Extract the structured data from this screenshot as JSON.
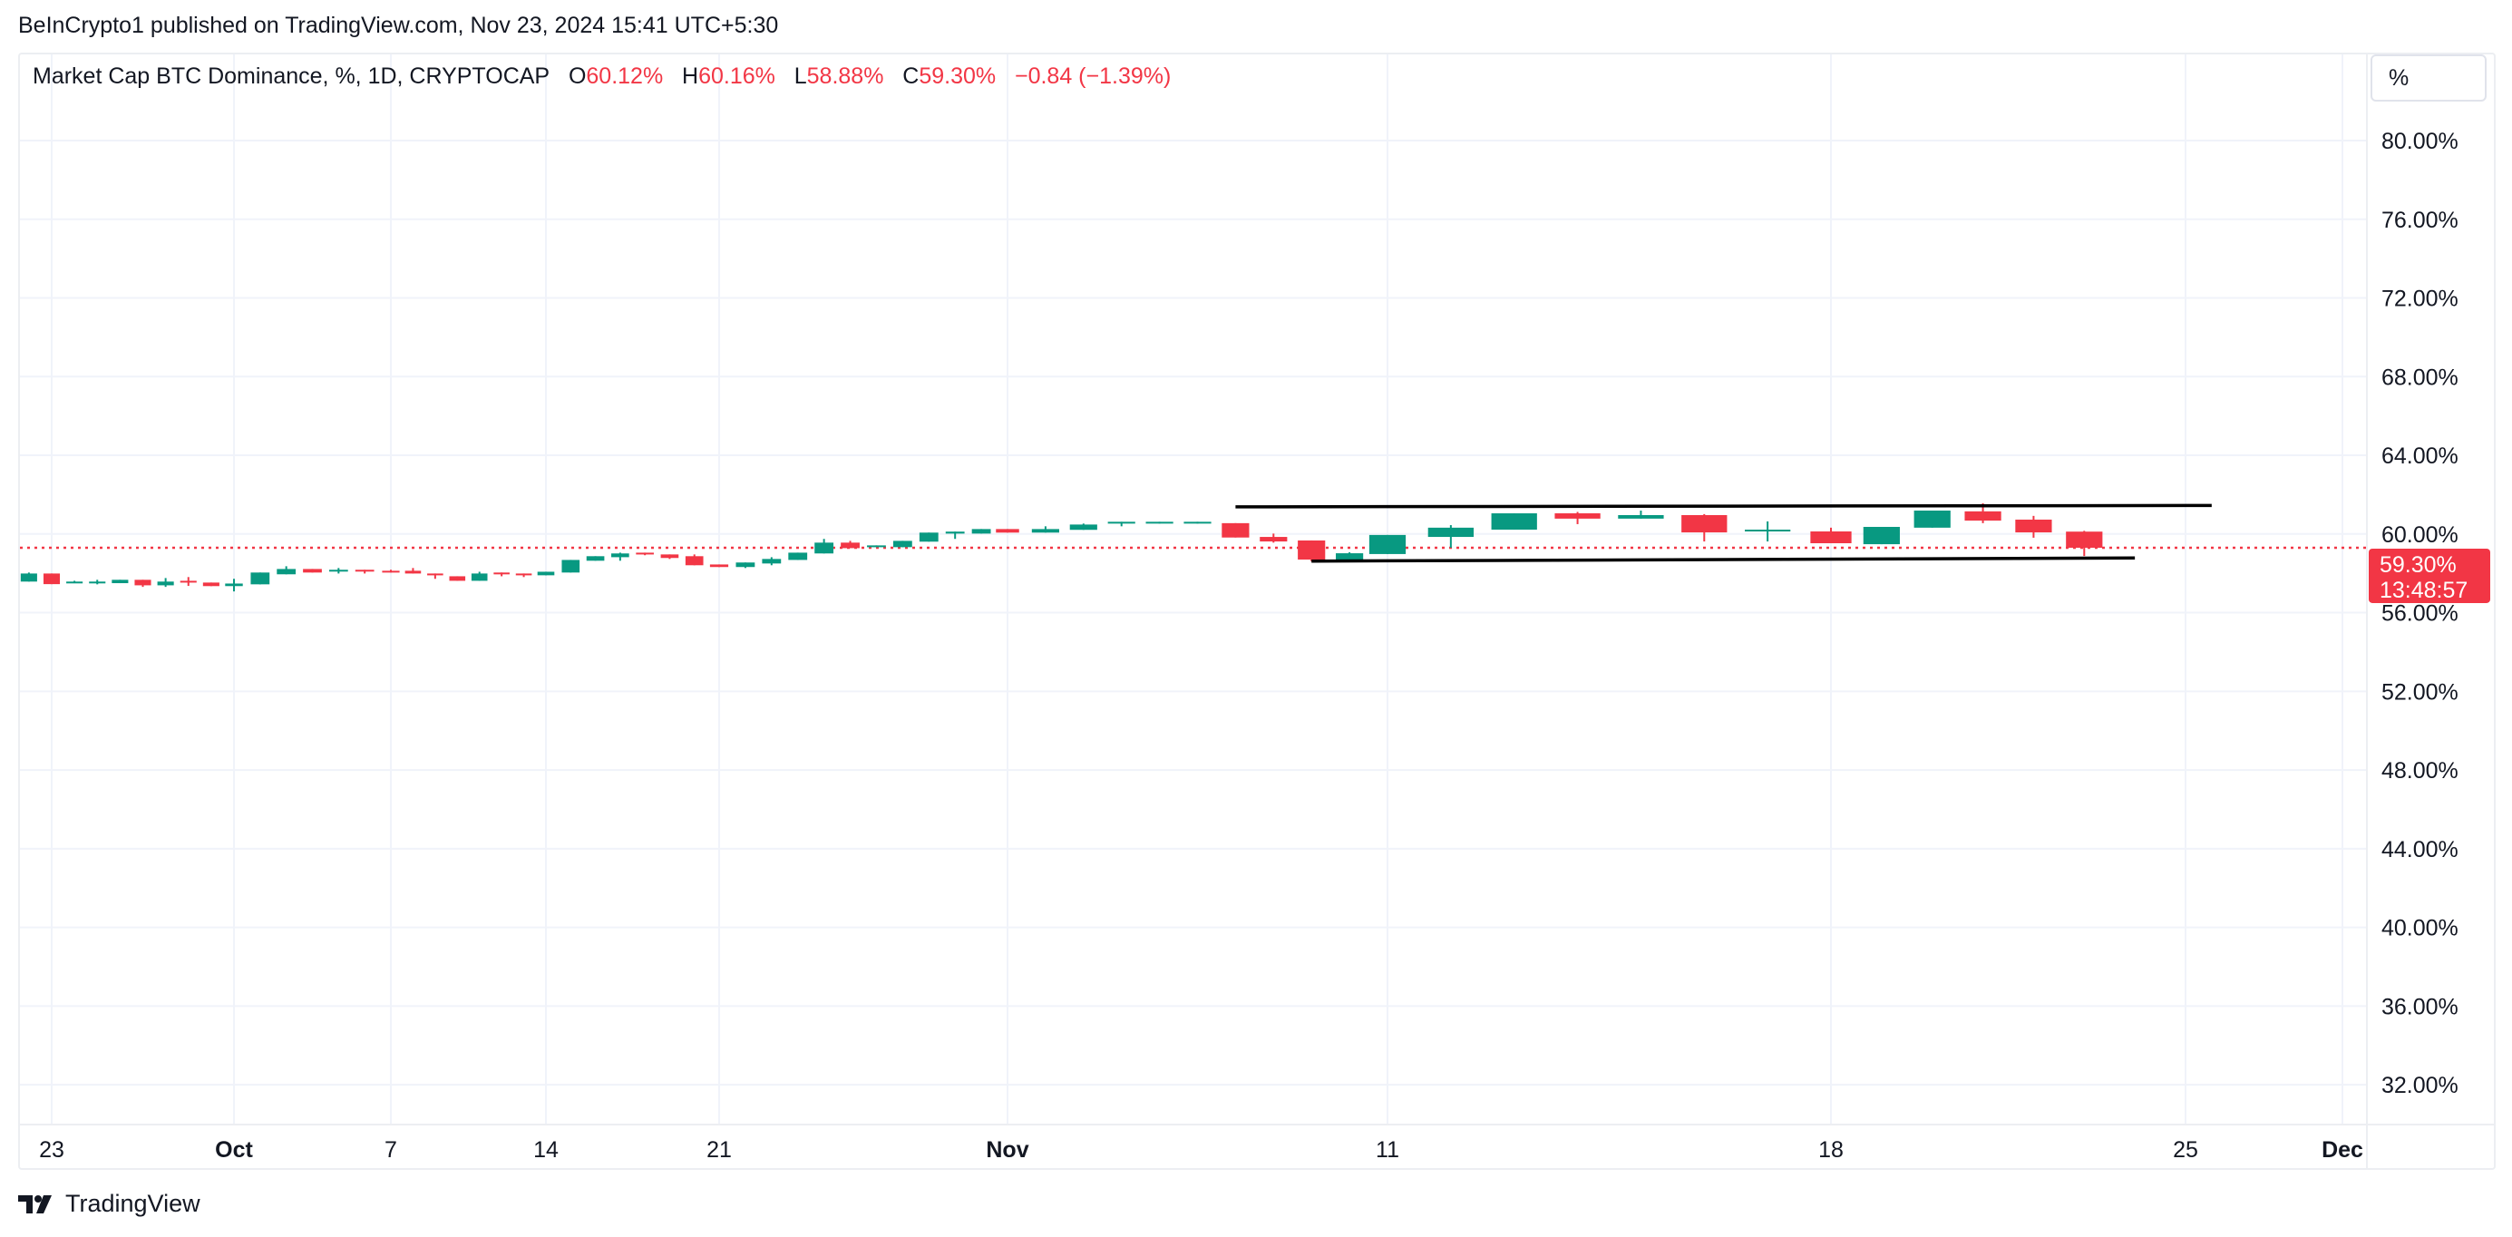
{
  "header": {
    "published": "BeInCrypto1 published on TradingView.com, Nov 23, 2024 15:41 UTC+5:30"
  },
  "legend": {
    "symbol": "Market Cap BTC Dominance, %, 1D, CRYPTOCAP",
    "o_label": "O",
    "o_value": "60.12%",
    "h_label": "H",
    "h_value": "60.16%",
    "l_label": "L",
    "l_value": "58.88%",
    "c_label": "C",
    "c_value": "59.30%",
    "change": "−0.84 (−1.39%)"
  },
  "scale_button": {
    "label": "%"
  },
  "price_label": {
    "value": "59.30%",
    "countdown": "13:48:57"
  },
  "footer": {
    "brand": "TradingView"
  },
  "colors": {
    "up": "#089981",
    "down": "#F23645",
    "grid": "#f0f3fa",
    "text": "#131722",
    "trendline": "#000000"
  },
  "chart_data": {
    "type": "candlestick",
    "title": "Market Cap BTC Dominance, %, 1D, CRYPTOCAP",
    "ylim": [
      30,
      82
    ],
    "grid": true,
    "y_ticks": [
      "80.00%",
      "76.00%",
      "72.00%",
      "68.00%",
      "64.00%",
      "60.00%",
      "56.00%",
      "52.00%",
      "48.00%",
      "44.00%",
      "40.00%",
      "36.00%",
      "32.00%"
    ],
    "y_tick_values": [
      80,
      76,
      72,
      68,
      64,
      60,
      56,
      52,
      48,
      44,
      40,
      36,
      32
    ],
    "x_ticks": [
      {
        "date": "2024-09-23",
        "label": "23",
        "bold": false
      },
      {
        "date": "2024-10-01",
        "label": "Oct",
        "bold": true
      },
      {
        "date": "2024-10-07",
        "label": "7",
        "bold": false
      },
      {
        "date": "2024-10-14",
        "label": "14",
        "bold": false
      },
      {
        "date": "2024-10-21",
        "label": "21",
        "bold": false
      },
      {
        "date": "2024-11-01",
        "label": "Nov",
        "bold": true
      },
      {
        "date": "2024-11-11",
        "label": "11",
        "bold": false
      },
      {
        "date": "2024-11-18",
        "label": "18",
        "bold": false
      },
      {
        "date": "2024-11-25",
        "label": "25",
        "bold": false
      },
      {
        "date": "2024-12-01",
        "label": "Dec",
        "bold": true
      }
    ],
    "last_close": 59.3,
    "columns": [
      "date",
      "open",
      "high",
      "low",
      "close"
    ],
    "candles": [
      [
        "2024-09-22",
        57.58,
        58.04,
        57.58,
        57.99
      ],
      [
        "2024-09-23",
        57.99,
        57.99,
        57.45,
        57.45
      ],
      [
        "2024-09-24",
        57.5,
        57.62,
        57.5,
        57.58
      ],
      [
        "2024-09-25",
        57.5,
        57.67,
        57.44,
        57.58
      ],
      [
        "2024-09-26",
        57.5,
        57.67,
        57.5,
        57.67
      ],
      [
        "2024-09-27",
        57.67,
        57.67,
        57.31,
        57.39
      ],
      [
        "2024-09-28",
        57.39,
        57.76,
        57.31,
        57.58
      ],
      [
        "2024-09-29",
        57.62,
        57.81,
        57.36,
        57.53
      ],
      [
        "2024-09-30",
        57.53,
        57.53,
        57.35,
        57.35
      ],
      [
        "2024-10-01",
        57.35,
        57.72,
        57.08,
        57.48
      ],
      [
        "2024-10-02",
        57.44,
        58.04,
        57.44,
        58.04
      ],
      [
        "2024-10-03",
        57.95,
        58.36,
        57.95,
        58.22
      ],
      [
        "2024-10-04",
        58.22,
        58.22,
        58.04,
        58.04
      ],
      [
        "2024-10-05",
        58.1,
        58.27,
        57.99,
        58.18
      ],
      [
        "2024-10-06",
        58.18,
        58.18,
        57.99,
        58.1
      ],
      [
        "2024-10-07",
        58.13,
        58.18,
        58.04,
        58.04
      ],
      [
        "2024-10-08",
        58.13,
        58.27,
        57.99,
        57.99
      ],
      [
        "2024-10-09",
        57.99,
        57.99,
        57.72,
        57.9
      ],
      [
        "2024-10-10",
        57.85,
        57.85,
        57.62,
        57.62
      ],
      [
        "2024-10-11",
        57.62,
        58.08,
        57.62,
        57.99
      ],
      [
        "2024-10-12",
        58.04,
        58.04,
        57.85,
        57.95
      ],
      [
        "2024-10-13",
        57.99,
        57.99,
        57.81,
        57.9
      ],
      [
        "2024-10-14",
        57.9,
        58.08,
        57.9,
        58.08
      ],
      [
        "2024-10-15",
        58.04,
        58.68,
        58.04,
        58.68
      ],
      [
        "2024-10-16",
        58.64,
        58.87,
        58.64,
        58.87
      ],
      [
        "2024-10-17",
        58.82,
        59.05,
        58.64,
        59.01
      ],
      [
        "2024-10-18",
        59.05,
        59.05,
        58.92,
        58.96
      ],
      [
        "2024-10-19",
        58.96,
        58.96,
        58.73,
        58.78
      ],
      [
        "2024-10-20",
        58.87,
        58.96,
        58.41,
        58.41
      ],
      [
        "2024-10-21",
        58.45,
        58.45,
        58.32,
        58.32
      ],
      [
        "2024-10-22",
        58.32,
        58.55,
        58.27,
        58.55
      ],
      [
        "2024-10-23",
        58.5,
        58.82,
        58.41,
        58.73
      ],
      [
        "2024-10-24",
        58.68,
        59.05,
        58.68,
        59.05
      ],
      [
        "2024-10-25",
        59.01,
        59.75,
        59.01,
        59.56
      ],
      [
        "2024-10-26",
        59.56,
        59.65,
        59.28,
        59.28
      ],
      [
        "2024-10-27",
        59.33,
        59.42,
        59.33,
        59.42
      ],
      [
        "2024-10-28",
        59.33,
        59.65,
        59.33,
        59.65
      ],
      [
        "2024-10-29",
        59.61,
        60.07,
        59.61,
        60.07
      ],
      [
        "2024-10-30",
        60.02,
        60.12,
        59.75,
        60.12
      ],
      [
        "2024-10-31",
        60.02,
        60.25,
        60.02,
        60.25
      ],
      [
        "2024-11-01",
        60.25,
        60.25,
        60.07,
        60.07
      ],
      [
        "2024-11-02",
        60.07,
        60.39,
        60.07,
        60.25
      ],
      [
        "2024-11-03",
        60.21,
        60.53,
        60.21,
        60.48
      ],
      [
        "2024-11-04",
        60.53,
        60.62,
        60.39,
        60.62
      ],
      [
        "2024-11-05",
        60.53,
        60.62,
        60.53,
        60.62
      ],
      [
        "2024-11-06",
        60.53,
        60.62,
        60.53,
        60.62
      ],
      [
        "2024-11-07",
        60.55,
        60.55,
        59.82,
        59.82
      ],
      [
        "2024-11-08",
        59.85,
        60.02,
        59.56,
        59.62
      ],
      [
        "2024-11-09",
        59.67,
        59.67,
        58.61,
        58.7
      ],
      [
        "2024-11-10",
        58.7,
        59.07,
        58.61,
        59.02
      ],
      [
        "2024-11-11",
        58.98,
        59.95,
        58.98,
        59.95
      ],
      [
        "2024-11-12",
        59.85,
        60.45,
        59.3,
        60.32
      ],
      [
        "2024-11-13",
        60.22,
        61.05,
        60.22,
        61.05
      ],
      [
        "2024-11-14",
        61.05,
        61.12,
        60.5,
        60.78
      ],
      [
        "2024-11-15",
        60.78,
        61.19,
        60.78,
        60.96
      ],
      [
        "2024-11-16",
        60.96,
        61.01,
        59.62,
        60.08
      ],
      [
        "2024-11-17",
        60.13,
        60.64,
        59.62,
        60.22
      ],
      [
        "2024-11-18",
        60.13,
        60.32,
        59.53,
        59.53
      ],
      [
        "2024-11-19",
        59.48,
        60.36,
        59.48,
        60.36
      ],
      [
        "2024-11-20",
        60.32,
        61.19,
        60.32,
        61.19
      ],
      [
        "2024-11-21",
        61.15,
        61.56,
        60.55,
        60.68
      ],
      [
        "2024-11-22",
        60.73,
        60.92,
        59.81,
        60.08
      ],
      [
        "2024-11-23",
        60.12,
        60.16,
        58.88,
        59.3
      ]
    ],
    "trendlines": [
      {
        "name": "upper",
        "start": [
          "2024-11-07",
          61.38
        ],
        "end": [
          "2024-11-26",
          61.45
        ]
      },
      {
        "name": "lower",
        "start": [
          "2024-11-09",
          58.62
        ],
        "end": [
          "2024-11-24",
          58.78
        ]
      }
    ]
  }
}
